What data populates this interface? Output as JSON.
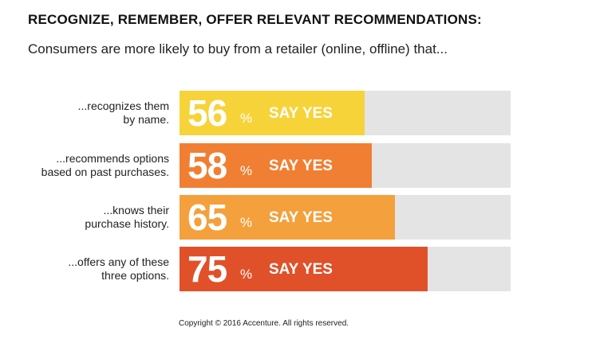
{
  "title": "RECOGNIZE, REMEMBER, OFFER RELEVANT RECOMMENDATIONS:",
  "subtitle": "Consumers are more likely to buy from a retailer (online, offline) that...",
  "copyright": "Copyright © 2016 Accenture. All rights reserved.",
  "chart_data": {
    "type": "bar",
    "orientation": "horizontal",
    "title": "RECOGNIZE, REMEMBER, OFFER RELEVANT RECOMMENDATIONS:",
    "subtitle": "Consumers are more likely to buy from a retailer (online, offline) that...",
    "xlim": [
      0,
      100
    ],
    "grid": false,
    "unit": "%",
    "value_suffix": "SAY YES",
    "categories": [
      "...recognizes them\nby name.",
      "...recommends options\nbased on past purchases.",
      "...knows their\npurchase history.",
      "...offers any of these\nthree options."
    ],
    "values": [
      56,
      58,
      65,
      75
    ],
    "colors": [
      "#f7d33a",
      "#f07f33",
      "#f4a03c",
      "#e0512a"
    ],
    "track_color": "#e4e4e4"
  }
}
